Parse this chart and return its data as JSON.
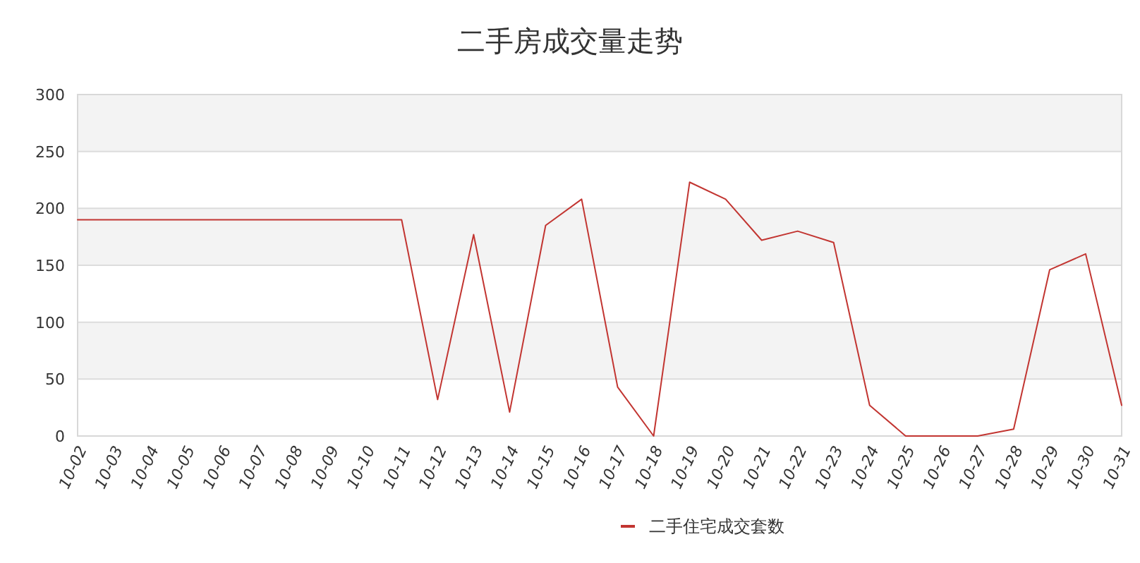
{
  "chart_data": {
    "type": "line",
    "title": "二手房成交量走势",
    "categories": [
      "10-02",
      "10-03",
      "10-04",
      "10-05",
      "10-06",
      "10-07",
      "10-08",
      "10-09",
      "10-10",
      "10-11",
      "10-12",
      "10-13",
      "10-14",
      "10-15",
      "10-16",
      "10-17",
      "10-18",
      "10-19",
      "10-20",
      "10-21",
      "10-22",
      "10-23",
      "10-24",
      "10-25",
      "10-26",
      "10-27",
      "10-28",
      "10-29",
      "10-30",
      "10-31"
    ],
    "series": [
      {
        "name": "二手住宅成交套数",
        "color": "#c23531",
        "values": [
          190,
          190,
          190,
          190,
          190,
          190,
          190,
          190,
          190,
          190,
          32,
          177,
          21,
          185,
          208,
          43,
          0,
          223,
          208,
          172,
          180,
          170,
          27,
          0,
          0,
          0,
          6,
          146,
          160,
          27
        ]
      }
    ],
    "ylim": [
      0,
      300
    ],
    "yticks": [
      0,
      50,
      100,
      150,
      200,
      250,
      300
    ],
    "grid": true,
    "legend": "bottom",
    "marker": "none",
    "line_style": "solid"
  }
}
